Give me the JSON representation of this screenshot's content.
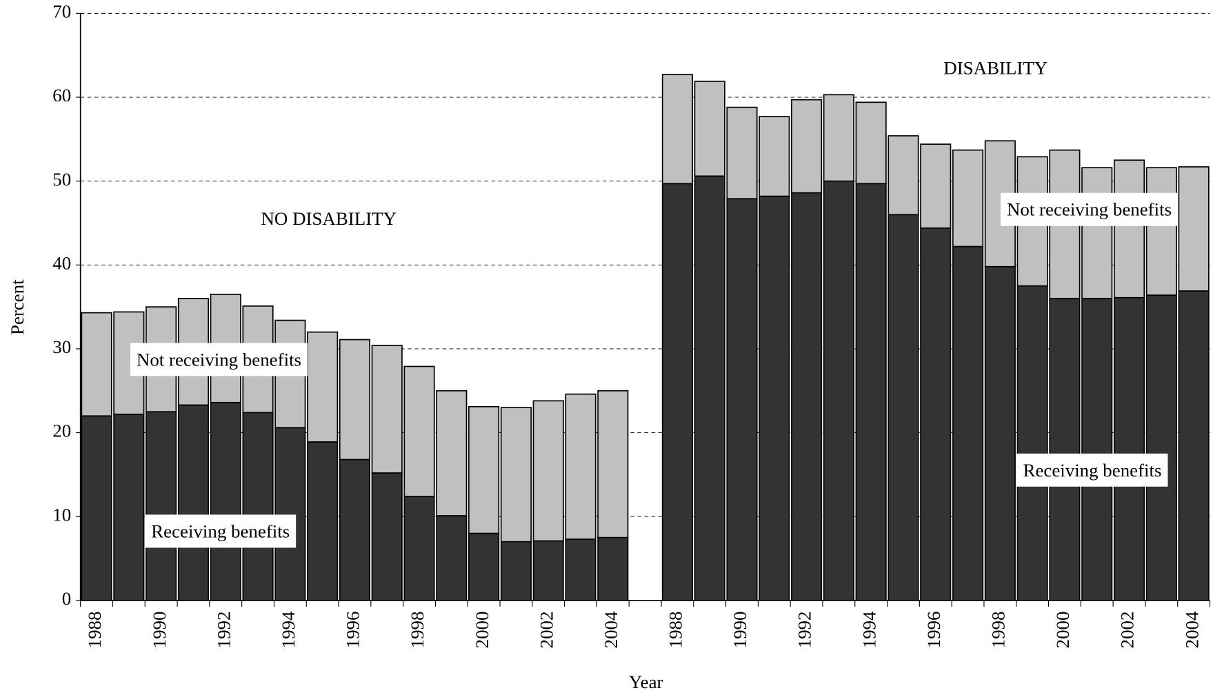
{
  "chart_data": {
    "type": "stacked_bar",
    "xlabel": "Year",
    "ylabel": "Percent",
    "categories": [
      "1988",
      null,
      "1990",
      null,
      "1992",
      null,
      "1994",
      null,
      "1996",
      null,
      "1998",
      null,
      "2000",
      null,
      "2002",
      null,
      "2004",
      null,
      "1988",
      null,
      "1990",
      null,
      "1992",
      null,
      "1994",
      null,
      "1996",
      null,
      "1998",
      null,
      "2000",
      null,
      "2002",
      null,
      "2004"
    ],
    "series": [
      {
        "name": "Receiving benefits",
        "color": "#333333",
        "values": [
          22.0,
          22.2,
          22.5,
          23.3,
          23.6,
          22.4,
          20.6,
          18.9,
          16.8,
          15.2,
          12.4,
          10.1,
          8.0,
          7.0,
          7.1,
          7.3,
          7.5,
          null,
          49.7,
          50.6,
          47.9,
          48.2,
          48.6,
          50.0,
          49.7,
          46.0,
          44.4,
          42.2,
          39.8,
          37.5,
          36.0,
          36.0,
          36.1,
          36.4,
          36.9
        ]
      },
      {
        "name": "Not receiving benefits",
        "color": "#c0c0c0",
        "values": [
          12.3,
          12.2,
          12.5,
          12.7,
          12.9,
          12.7,
          12.8,
          13.1,
          14.3,
          15.2,
          15.5,
          14.9,
          15.1,
          16.0,
          16.7,
          17.3,
          17.5,
          null,
          13.0,
          11.3,
          10.9,
          9.5,
          11.1,
          10.3,
          9.7,
          9.4,
          10.0,
          11.5,
          15.0,
          15.4,
          17.7,
          15.6,
          16.4,
          15.2,
          14.8
        ]
      }
    ],
    "annotations": [
      {
        "text": "NO DISABILITY"
      },
      {
        "text": "DISABILITY"
      },
      {
        "text": "Not receiving benefits"
      },
      {
        "text": "Receiving benefits"
      }
    ],
    "ylim": [
      0,
      70
    ],
    "yticks": [
      0,
      10,
      20,
      30,
      40,
      50,
      60,
      70
    ],
    "grid": true
  }
}
